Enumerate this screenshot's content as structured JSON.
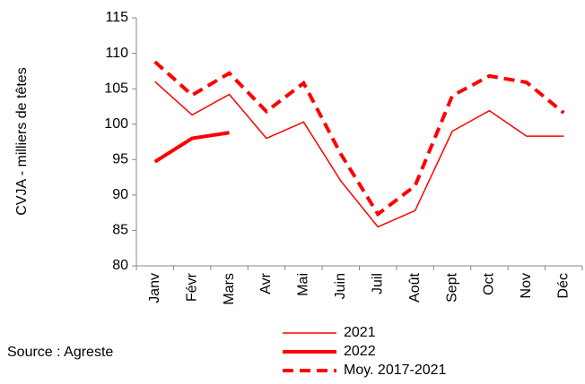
{
  "chart_data": {
    "type": "line",
    "y_label": "CVJA - milliers de têtes",
    "source": "Source : Agreste",
    "categories": [
      "Janv",
      "Févr",
      "Mars",
      "Avr",
      "Mai",
      "Juin",
      "Juil",
      "Août",
      "Sept",
      "Oct",
      "Nov",
      "Déc"
    ],
    "series": [
      {
        "name": "2021",
        "color": "#ff0000",
        "width": 1.5,
        "dash": false,
        "values": [
          106,
          101.3,
          104.2,
          98,
          100.3,
          92,
          85.5,
          87.8,
          99,
          101.9,
          98.3,
          98.3
        ]
      },
      {
        "name": "2022",
        "color": "#ff0000",
        "width": 4,
        "dash": false,
        "values": [
          94.7,
          98,
          98.8,
          null,
          null,
          null,
          null,
          null,
          null,
          null,
          null,
          null
        ]
      },
      {
        "name": "Moy. 2017-2021",
        "color": "#ff0000",
        "width": 4,
        "dash": true,
        "values": [
          108.8,
          104.1,
          107.2,
          101.8,
          105.8,
          95.8,
          87.3,
          91.3,
          104,
          106.8,
          105.9,
          101.6
        ]
      }
    ],
    "ylim": [
      80,
      115
    ],
    "yticks": [
      80,
      85,
      90,
      95,
      100,
      105,
      110,
      115
    ]
  }
}
